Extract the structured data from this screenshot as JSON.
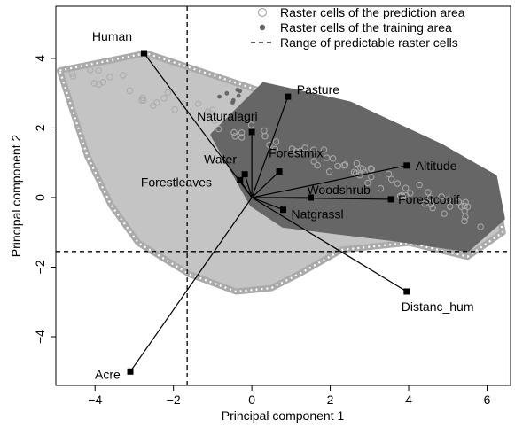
{
  "chart_data": {
    "type": "scatter",
    "title": "",
    "xlabel": "Principal component 1",
    "ylabel": "Principal component 2",
    "xlim": [
      -5.0,
      6.6
    ],
    "ylim": [
      -5.4,
      5.5
    ],
    "xticks": [
      -4,
      -2,
      0,
      2,
      4,
      6
    ],
    "yticks": [
      -4,
      -2,
      0,
      2,
      4
    ],
    "grid": false,
    "legend_position": "top-right",
    "legend": [
      {
        "label": "Raster cells of the prediction area",
        "symbol": "open-circle",
        "color": "#aaaaaa"
      },
      {
        "label": "Raster cells of the training area",
        "symbol": "filled-circle",
        "color": "#666666"
      },
      {
        "label": "Range of predictable raster cells",
        "symbol": "dashed-line",
        "color": "#000000"
      }
    ],
    "range_lines": {
      "x": -1.65,
      "y": -1.55
    },
    "prediction_area_hull": [
      [
        -4.9,
        3.65
      ],
      [
        -2.7,
        4.15
      ],
      [
        0.4,
        3.0
      ],
      [
        3.0,
        1.8
      ],
      [
        5.2,
        0.9
      ],
      [
        6.2,
        0.2
      ],
      [
        6.4,
        -1.0
      ],
      [
        5.5,
        -1.7
      ],
      [
        4.0,
        -1.3
      ],
      [
        2.3,
        -1.5
      ],
      [
        1.2,
        -2.2
      ],
      [
        0.5,
        -2.6
      ],
      [
        -0.4,
        -2.7
      ],
      [
        -1.6,
        -2.2
      ],
      [
        -2.9,
        -1.3
      ],
      [
        -3.6,
        -0.2
      ],
      [
        -4.2,
        1.2
      ],
      [
        -4.6,
        2.6
      ]
    ],
    "training_area_hull": [
      [
        -1.0,
        1.8
      ],
      [
        0.3,
        3.25
      ],
      [
        2.5,
        2.7
      ],
      [
        4.8,
        1.5
      ],
      [
        6.2,
        0.6
      ],
      [
        6.4,
        -0.6
      ],
      [
        5.5,
        -1.5
      ],
      [
        3.7,
        -1.2
      ],
      [
        2.2,
        -1.0
      ],
      [
        0.8,
        -0.8
      ],
      [
        0.0,
        -0.2
      ]
    ],
    "loadings": [
      {
        "name": "Human",
        "x": -2.75,
        "y": 4.15
      },
      {
        "name": "Pasture",
        "x": 0.92,
        "y": 2.9
      },
      {
        "name": "Naturalagri",
        "x": 0.0,
        "y": 1.88
      },
      {
        "name": "Water",
        "x": -0.18,
        "y": 0.67
      },
      {
        "name": "Forestleaves",
        "x": -0.3,
        "y": 0.5
      },
      {
        "name": "Forestmix",
        "x": 0.7,
        "y": 0.75
      },
      {
        "name": "Altitude",
        "x": 3.95,
        "y": 0.92
      },
      {
        "name": "Woodshrub",
        "x": 1.5,
        "y": 0.0
      },
      {
        "name": "Forestconif",
        "x": 3.55,
        "y": -0.05
      },
      {
        "name": "Natgrassl",
        "x": 0.8,
        "y": -0.35
      },
      {
        "name": "Distanc_hum",
        "x": 3.95,
        "y": -2.7
      },
      {
        "name": "Acre",
        "x": -3.1,
        "y": -5.0
      }
    ]
  }
}
